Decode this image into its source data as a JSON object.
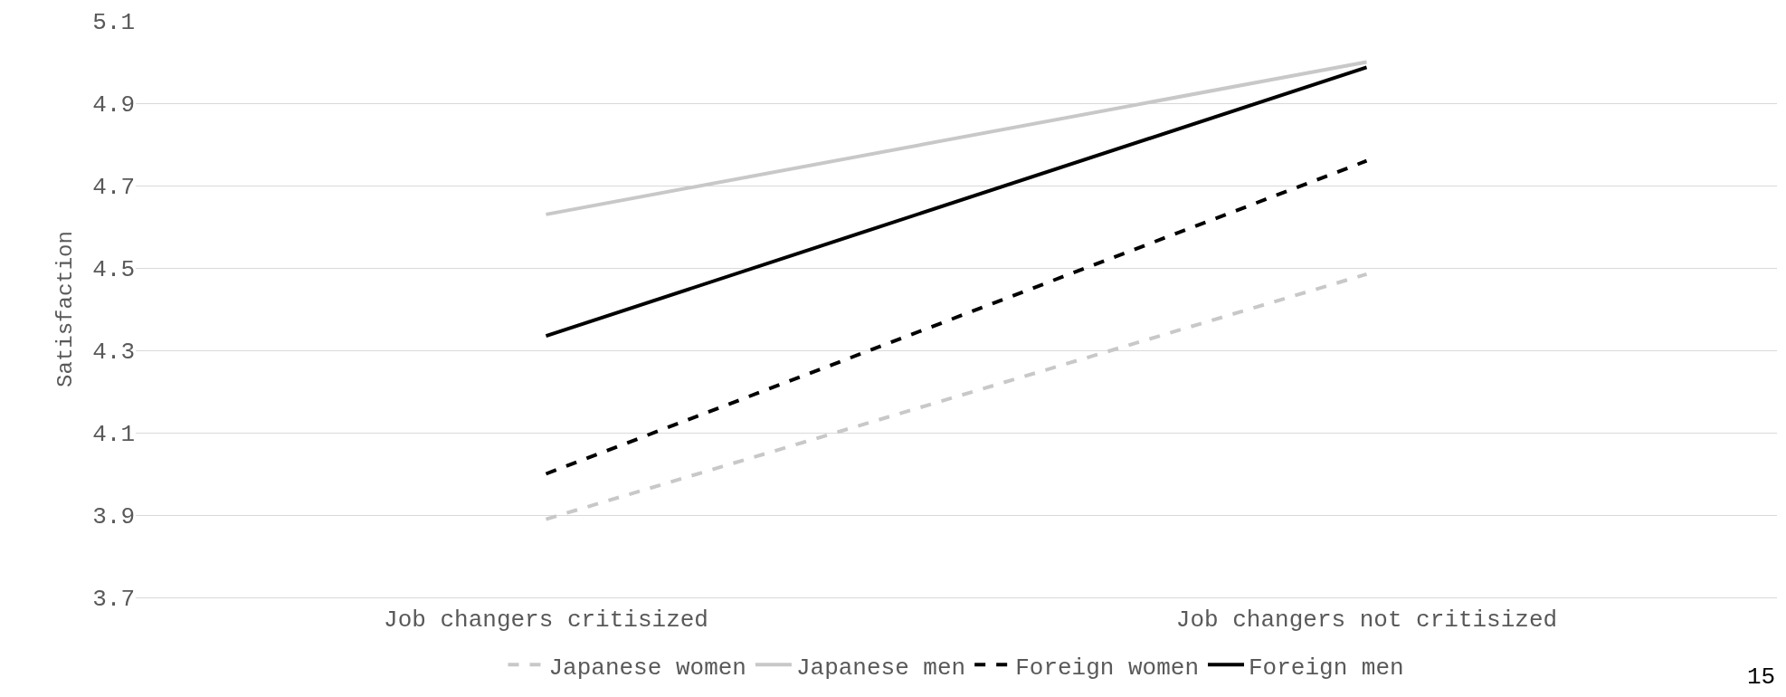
{
  "chart_data": {
    "type": "line",
    "ylabel": "Satisfaction",
    "categories": [
      "Job changers critisized",
      "Job changers not critisized"
    ],
    "series": [
      {
        "name": "Japanese women",
        "color": "#c8c8c8",
        "line_style": "dashed",
        "values": [
          3.89,
          4.485
        ]
      },
      {
        "name": "Japanese men",
        "color": "#c8c8c8",
        "line_style": "solid",
        "values": [
          4.63,
          5.0
        ]
      },
      {
        "name": "Foreign women",
        "color": "#000000",
        "line_style": "dashed",
        "values": [
          4.0,
          4.76
        ]
      },
      {
        "name": "Foreign men",
        "color": "#000000",
        "line_style": "solid",
        "values": [
          4.335,
          4.987
        ]
      }
    ],
    "ylim": [
      3.7,
      5.1
    ],
    "yticks": [
      3.7,
      3.9,
      4.1,
      4.3,
      4.5,
      4.7,
      4.9,
      5.1
    ],
    "grid": "y",
    "legend": "bottom",
    "marker": "none",
    "annotations": [
      "15"
    ]
  }
}
